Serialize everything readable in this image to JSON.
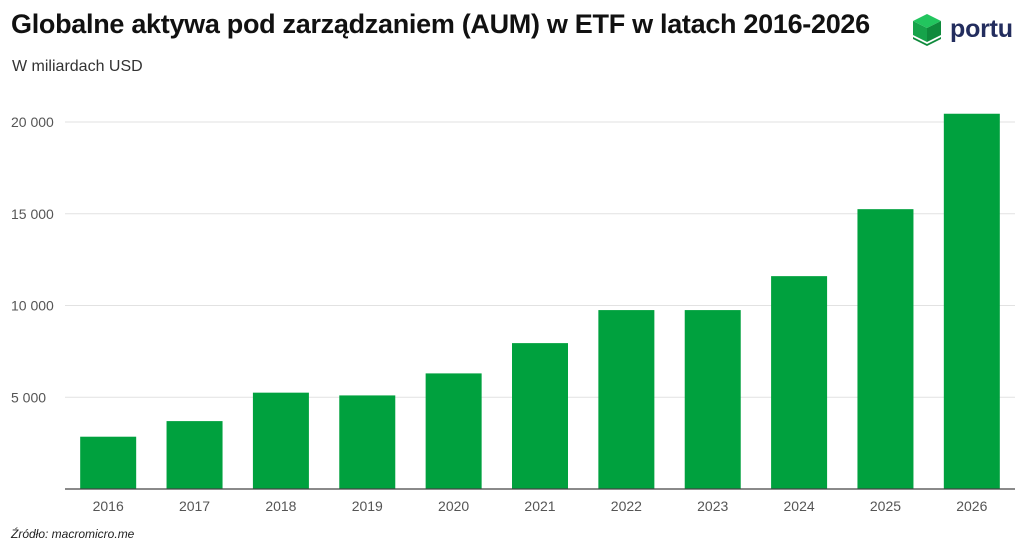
{
  "header": {
    "title": "Globalne aktywa pod zarządzaniem (AUM) w ETF w latach 2016-2026",
    "subtitle": "W miliardach USD"
  },
  "logo": {
    "text": "portu",
    "icon": "cube-logo-icon"
  },
  "footer": {
    "source": "Źródło: macromicro.me"
  },
  "colors": {
    "bar": "#00a13e",
    "grid": "#e2e2e2",
    "axis": "#444444",
    "brand": "#232d5e"
  },
  "chart_data": {
    "type": "bar",
    "title": "Globalne aktywa pod zarządzaniem (AUM) w ETF w latach 2016-2026",
    "subtitle": "W miliardach USD",
    "categories": [
      "2016",
      "2017",
      "2018",
      "2019",
      "2020",
      "2021",
      "2022",
      "2023",
      "2024",
      "2025",
      "2026"
    ],
    "values": [
      2850,
      3700,
      5250,
      5100,
      6300,
      7950,
      9750,
      9750,
      11600,
      15250,
      20450
    ],
    "ylim": [
      0,
      20000
    ],
    "yticks": [
      5000,
      10000,
      15000,
      20000
    ],
    "ytick_labels": [
      "5 000",
      "10 000",
      "15 000",
      "20 000"
    ],
    "grid": true,
    "legend": "none"
  }
}
